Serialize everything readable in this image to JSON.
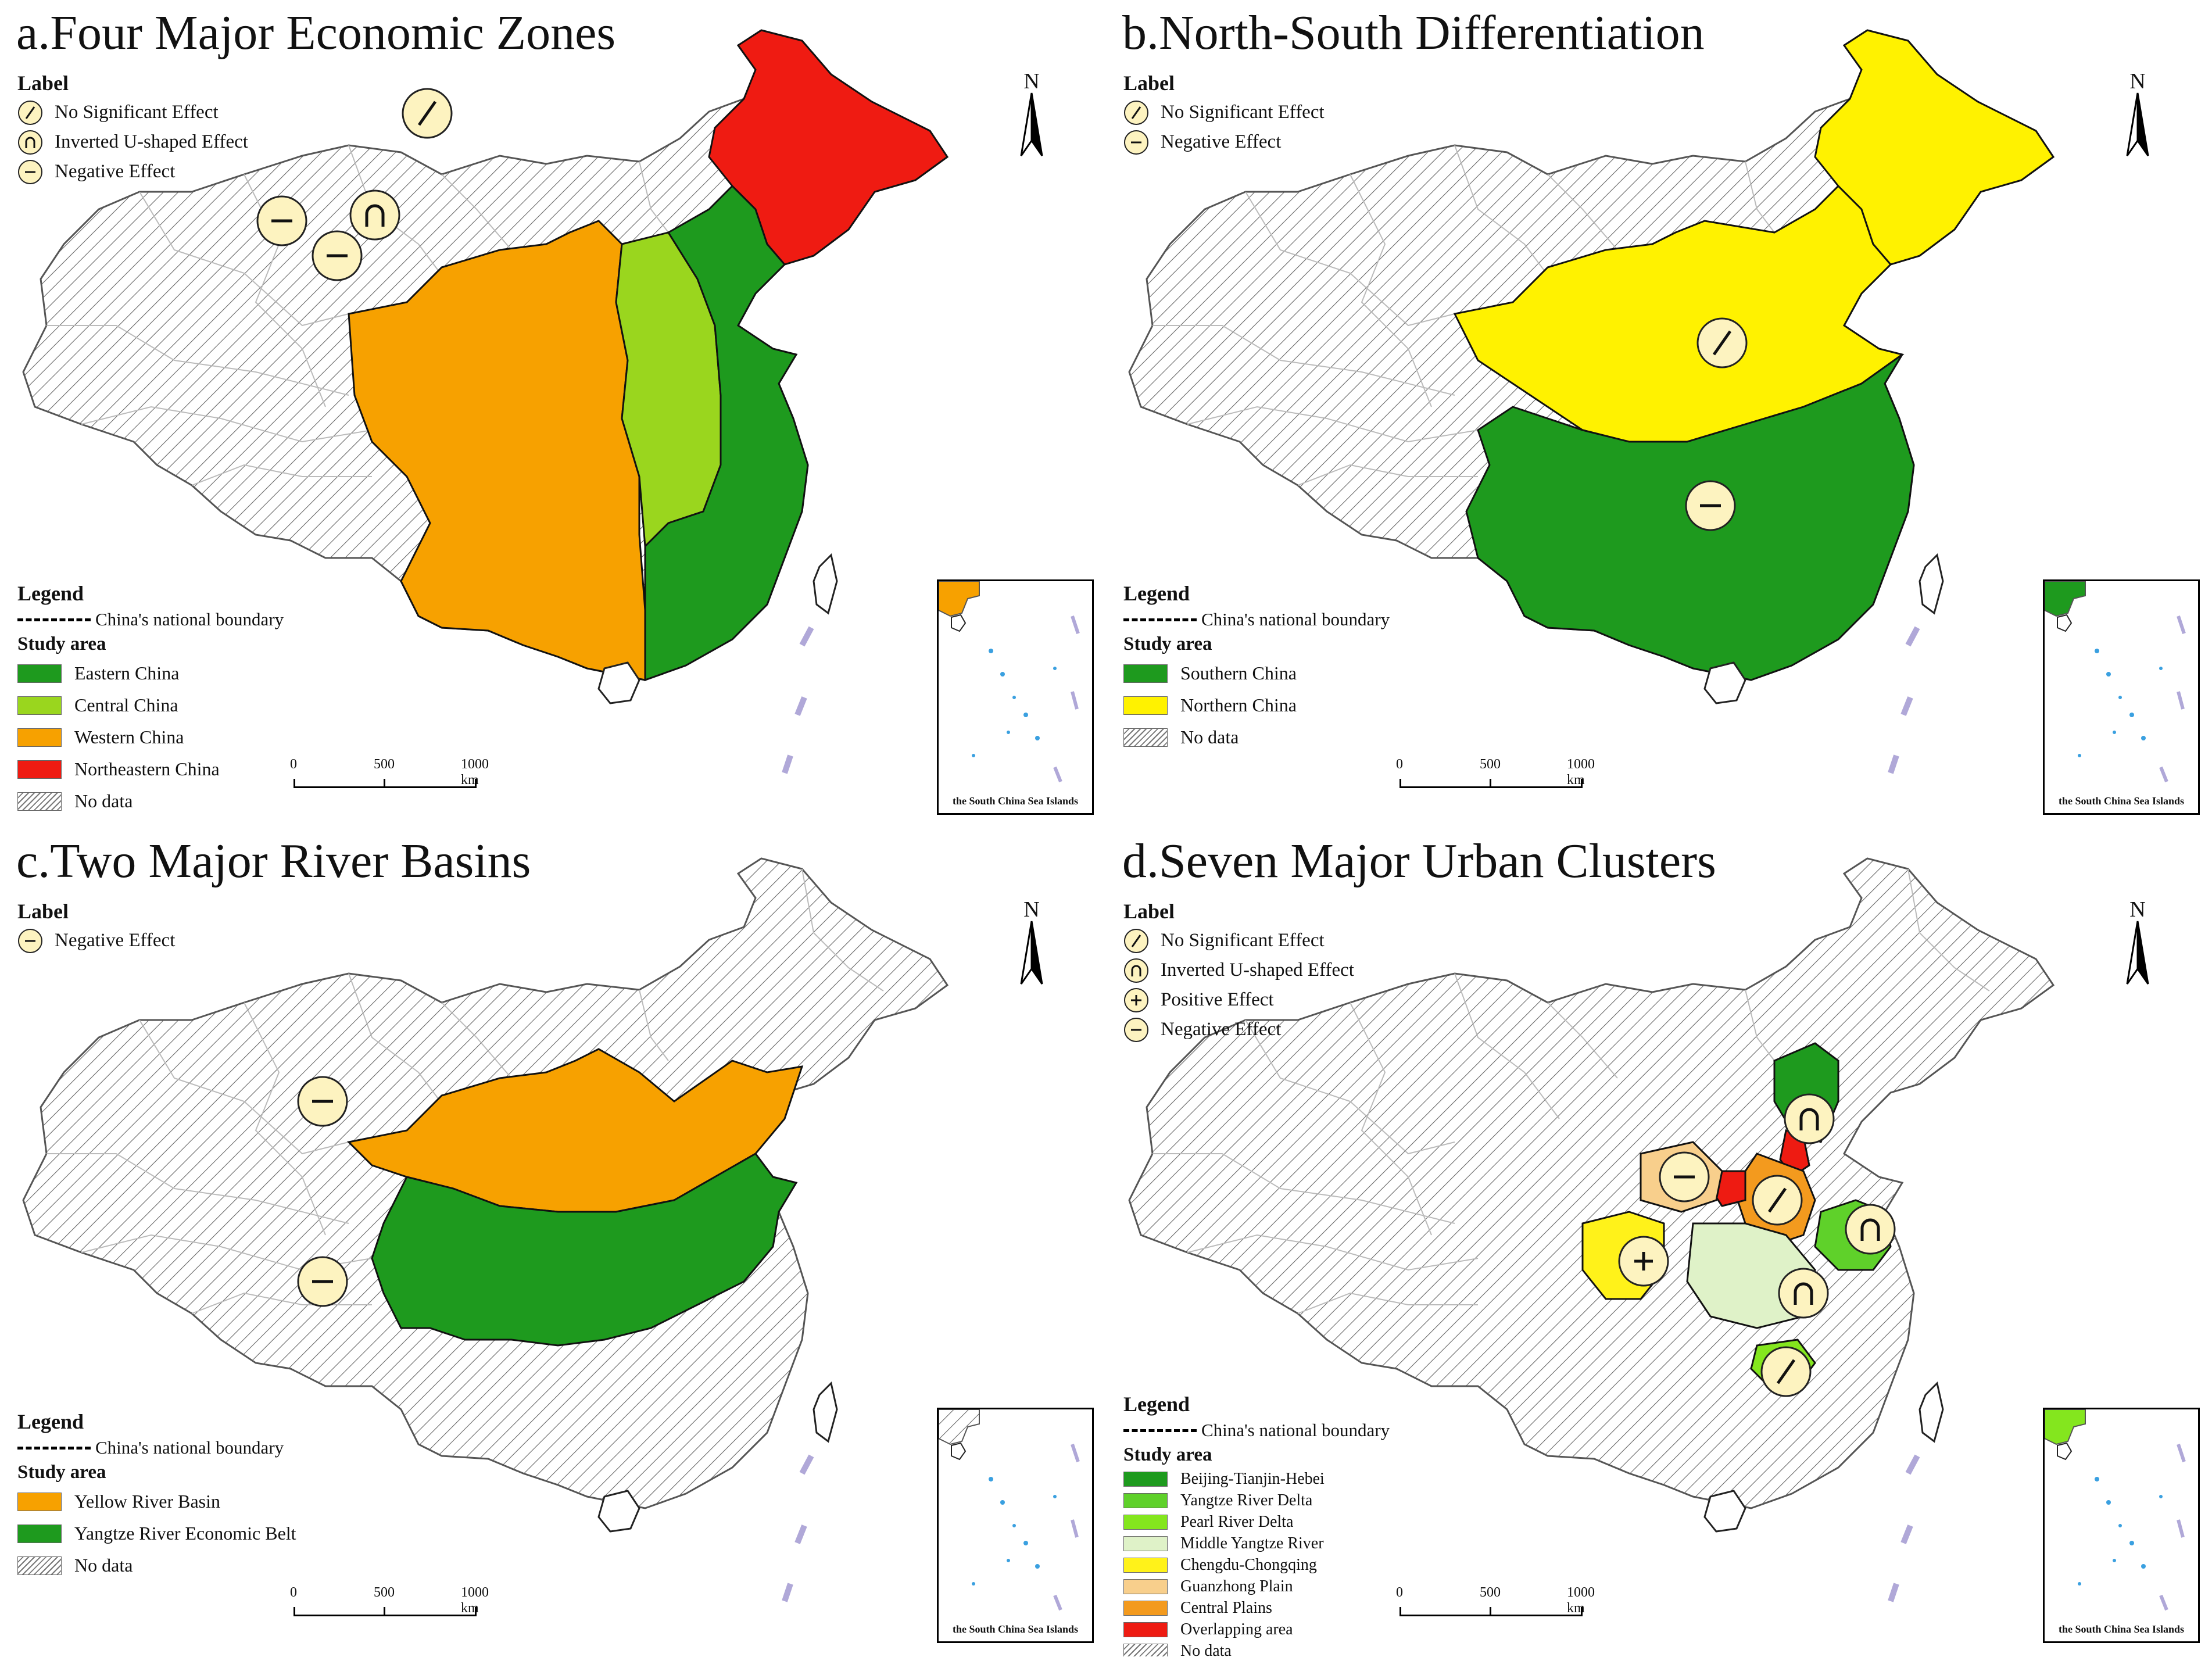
{
  "panels": {
    "a": {
      "title": "a.Four Major Economic Zones",
      "label_head": "Label",
      "labels": [
        "No Significant Effect",
        "Inverted U-shaped Effect",
        "Negative Effect"
      ],
      "legend_head": "Legend",
      "boundary": "China's national boundary",
      "study_area": "Study area",
      "items": [
        "Eastern China",
        "Central China",
        "Western China",
        "Northeastern China",
        "No data"
      ],
      "colors": [
        "#1e9a1e",
        "#9ad61e",
        "#f7a100",
        "#ef1b12"
      ]
    },
    "b": {
      "title": "b.North-South Differentiation",
      "label_head": "Label",
      "labels": [
        "No Significant Effect",
        "Negative Effect"
      ],
      "legend_head": "Legend",
      "boundary": "China's national boundary",
      "study_area": "Study area",
      "items": [
        "Southern China",
        "Northern China",
        "No data"
      ],
      "colors": [
        "#1e9a1e",
        "#fff200"
      ]
    },
    "c": {
      "title": "c.Two Major River Basins",
      "label_head": "Label",
      "labels": [
        "Negative Effect"
      ],
      "legend_head": "Legend",
      "boundary": "China's national boundary",
      "study_area": "Study area",
      "items": [
        "Yellow River Basin",
        "Yangtze River Economic Belt",
        "No data"
      ],
      "colors": [
        "#f7a100",
        "#1e9a1e"
      ]
    },
    "d": {
      "title": "d.Seven Major Urban Clusters",
      "label_head": "Label",
      "labels": [
        "No Significant Effect",
        "Inverted U-shaped Effect",
        "Positive Effect",
        "Negative Effect"
      ],
      "legend_head": "Legend",
      "boundary": "China's national boundary",
      "study_area": "Study area",
      "items": [
        "Beijing-Tianjin-Hebei",
        "Yangtze River Delta",
        "Pearl River Delta",
        "Middle Yangtze River",
        "Chengdu-Chongqing",
        "Guanzhong Plain",
        "Central Plains",
        "Overlapping area",
        "No data"
      ],
      "colors": [
        "#1e9a1e",
        "#5fd12a",
        "#84e61e",
        "#dff2c8",
        "#fff21a",
        "#f8cf8c",
        "#f39a1e",
        "#ee1b12"
      ]
    }
  },
  "scale": {
    "ticks": [
      "0",
      "500",
      "1000 km"
    ]
  },
  "north": "N",
  "inset_label": "the South China Sea Islands",
  "symbol_names": {
    "No Significant Effect": "slash-symbol",
    "Inverted U-shaped Effect": "inverted-u-symbol",
    "Positive Effect": "plus-symbol",
    "Negative Effect": "minus-symbol"
  }
}
